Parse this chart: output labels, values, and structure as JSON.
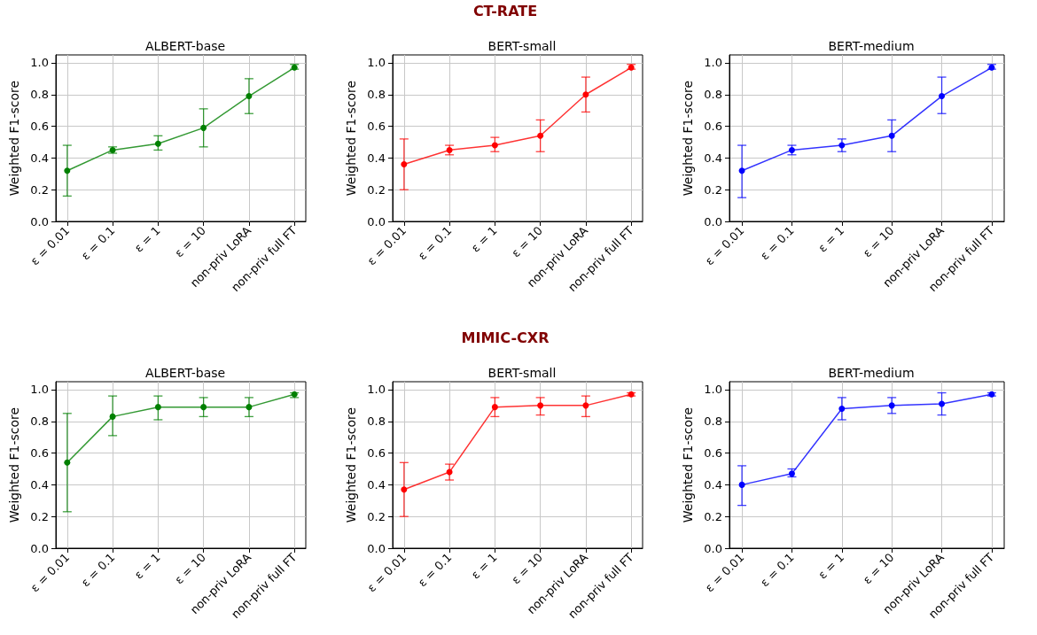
{
  "chart_data": [
    {
      "type": "line",
      "title": "ALBERT-base",
      "ylabel": "Weighted F1-score",
      "categories": [
        "ε = 0.01",
        "ε = 0.1",
        "ε = 1",
        "ε = 10",
        "non-priv LoRA",
        "non-priv full FT"
      ],
      "ylim": [
        0,
        1.05
      ],
      "yticks": [
        {
          "value": 0,
          "label": "0.0"
        },
        {
          "value": 0.2,
          "label": "0.2"
        },
        {
          "value": 0.4,
          "label": "0.4"
        },
        {
          "value": 0.6,
          "label": "0.6"
        },
        {
          "value": 0.8,
          "label": "0.8"
        },
        {
          "value": 1,
          "label": "1.0"
        }
      ],
      "grid": true,
      "marker": "circle",
      "line_style": "solid",
      "series": [
        {
          "color": "#008000",
          "values": [
            0.32,
            0.45,
            0.49,
            0.59,
            0.79,
            0.97
          ],
          "errors": [
            [
              0.16,
              0.48
            ],
            [
              0.43,
              0.47
            ],
            [
              0.45,
              0.54
            ],
            [
              0.47,
              0.71
            ],
            [
              0.68,
              0.9
            ],
            [
              0.96,
              0.99
            ]
          ]
        }
      ]
    },
    {
      "type": "line",
      "title": "BERT-small",
      "ylabel": "Weighted F1-score",
      "annotations": [
        "CT-RATE"
      ],
      "categories": [
        "ε = 0.01",
        "ε = 0.1",
        "ε = 1",
        "ε = 10",
        "non-priv LoRA",
        "non-priv full FT"
      ],
      "ylim": [
        0,
        1.05
      ],
      "yticks": [
        {
          "value": 0,
          "label": "0.0"
        },
        {
          "value": 0.2,
          "label": "0.2"
        },
        {
          "value": 0.4,
          "label": "0.4"
        },
        {
          "value": 0.6,
          "label": "0.6"
        },
        {
          "value": 0.8,
          "label": "0.8"
        },
        {
          "value": 1,
          "label": "1.0"
        }
      ],
      "grid": true,
      "marker": "circle",
      "line_style": "solid",
      "series": [
        {
          "color": "#ff0000",
          "values": [
            0.36,
            0.45,
            0.48,
            0.54,
            0.8,
            0.97
          ],
          "errors": [
            [
              0.2,
              0.52
            ],
            [
              0.42,
              0.48
            ],
            [
              0.44,
              0.53
            ],
            [
              0.44,
              0.64
            ],
            [
              0.69,
              0.91
            ],
            [
              0.96,
              0.99
            ]
          ]
        }
      ]
    },
    {
      "type": "line",
      "title": "BERT-medium",
      "ylabel": "Weighted F1-score",
      "categories": [
        "ε = 0.01",
        "ε = 0.1",
        "ε = 1",
        "ε = 10",
        "non-priv LoRA",
        "non-priv full FT"
      ],
      "ylim": [
        0,
        1.05
      ],
      "yticks": [
        {
          "value": 0,
          "label": "0.0"
        },
        {
          "value": 0.2,
          "label": "0.2"
        },
        {
          "value": 0.4,
          "label": "0.4"
        },
        {
          "value": 0.6,
          "label": "0.6"
        },
        {
          "value": 0.8,
          "label": "0.8"
        },
        {
          "value": 1,
          "label": "1.0"
        }
      ],
      "grid": true,
      "marker": "circle",
      "line_style": "solid",
      "series": [
        {
          "color": "#0000ff",
          "values": [
            0.32,
            0.45,
            0.48,
            0.54,
            0.79,
            0.97
          ],
          "errors": [
            [
              0.15,
              0.48
            ],
            [
              0.42,
              0.48
            ],
            [
              0.44,
              0.52
            ],
            [
              0.44,
              0.64
            ],
            [
              0.68,
              0.91
            ],
            [
              0.96,
              0.99
            ]
          ]
        }
      ]
    },
    {
      "type": "line",
      "title": "ALBERT-base",
      "ylabel": "Weighted F1-score",
      "categories": [
        "ε = 0.01",
        "ε = 0.1",
        "ε = 1",
        "ε = 10",
        "non-priv LoRA",
        "non-priv full FT"
      ],
      "ylim": [
        0,
        1.05
      ],
      "yticks": [
        {
          "value": 0,
          "label": "0.0"
        },
        {
          "value": 0.2,
          "label": "0.2"
        },
        {
          "value": 0.4,
          "label": "0.4"
        },
        {
          "value": 0.6,
          "label": "0.6"
        },
        {
          "value": 0.8,
          "label": "0.8"
        },
        {
          "value": 1,
          "label": "1.0"
        }
      ],
      "grid": true,
      "marker": "circle",
      "line_style": "solid",
      "series": [
        {
          "color": "#008000",
          "values": [
            0.54,
            0.83,
            0.89,
            0.89,
            0.89,
            0.97
          ],
          "errors": [
            [
              0.23,
              0.85
            ],
            [
              0.71,
              0.96
            ],
            [
              0.81,
              0.96
            ],
            [
              0.83,
              0.95
            ],
            [
              0.83,
              0.95
            ],
            [
              0.95,
              0.98
            ]
          ]
        }
      ]
    },
    {
      "type": "line",
      "title": "BERT-small",
      "ylabel": "Weighted F1-score",
      "annotations": [
        "MIMIC-CXR"
      ],
      "categories": [
        "ε = 0.01",
        "ε = 0.1",
        "ε = 1",
        "ε = 10",
        "non-priv LoRA",
        "non-priv full FT"
      ],
      "ylim": [
        0,
        1.05
      ],
      "yticks": [
        {
          "value": 0,
          "label": "0.0"
        },
        {
          "value": 0.2,
          "label": "0.2"
        },
        {
          "value": 0.4,
          "label": "0.4"
        },
        {
          "value": 0.6,
          "label": "0.6"
        },
        {
          "value": 0.8,
          "label": "0.8"
        },
        {
          "value": 1,
          "label": "1.0"
        }
      ],
      "grid": true,
      "marker": "circle",
      "line_style": "solid",
      "series": [
        {
          "color": "#ff0000",
          "values": [
            0.37,
            0.48,
            0.89,
            0.9,
            0.9,
            0.97
          ],
          "errors": [
            [
              0.2,
              0.54
            ],
            [
              0.43,
              0.53
            ],
            [
              0.83,
              0.95
            ],
            [
              0.84,
              0.95
            ],
            [
              0.83,
              0.96
            ],
            [
              0.96,
              0.98
            ]
          ]
        }
      ]
    },
    {
      "type": "line",
      "title": "BERT-medium",
      "ylabel": "Weighted F1-score",
      "categories": [
        "ε = 0.01",
        "ε = 0.1",
        "ε = 1",
        "ε = 10",
        "non-priv LoRA",
        "non-priv full FT"
      ],
      "ylim": [
        0,
        1.05
      ],
      "yticks": [
        {
          "value": 0,
          "label": "0.0"
        },
        {
          "value": 0.2,
          "label": "0.2"
        },
        {
          "value": 0.4,
          "label": "0.4"
        },
        {
          "value": 0.6,
          "label": "0.6"
        },
        {
          "value": 0.8,
          "label": "0.8"
        },
        {
          "value": 1,
          "label": "1.0"
        }
      ],
      "grid": true,
      "marker": "circle",
      "line_style": "solid",
      "series": [
        {
          "color": "#0000ff",
          "values": [
            0.4,
            0.47,
            0.88,
            0.9,
            0.91,
            0.97
          ],
          "errors": [
            [
              0.27,
              0.52
            ],
            [
              0.45,
              0.5
            ],
            [
              0.81,
              0.95
            ],
            [
              0.85,
              0.95
            ],
            [
              0.84,
              0.98
            ],
            [
              0.96,
              0.98
            ]
          ]
        }
      ]
    }
  ]
}
